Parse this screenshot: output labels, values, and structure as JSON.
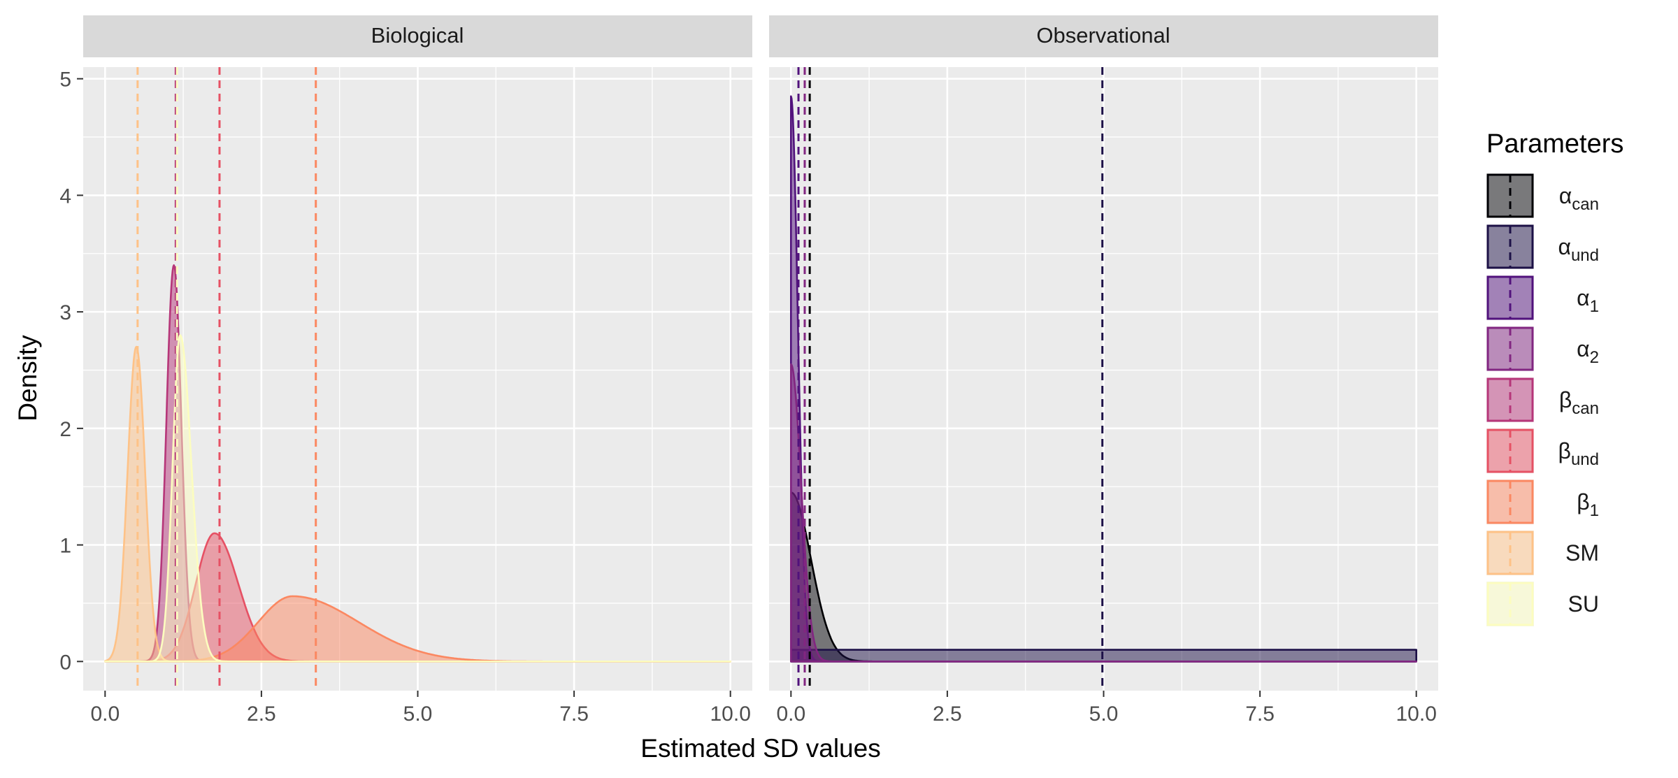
{
  "chart_data": {
    "type": "area",
    "subtype": "density",
    "facets": [
      "Biological",
      "Observational"
    ],
    "xlabel": "Estimated SD values",
    "ylabel": "Density",
    "xlim": [
      -0.35,
      10.35
    ],
    "ylim": [
      -0.25,
      5.1
    ],
    "x_ticks": [
      0,
      2.5,
      5,
      7.5,
      10
    ],
    "x_tick_labels": [
      "0.0",
      "2.5",
      "5.0",
      "7.5",
      "10.0"
    ],
    "y_ticks": [
      0,
      1,
      2,
      3,
      4,
      5
    ],
    "y_tick_labels": [
      "0",
      "1",
      "2",
      "3",
      "4",
      "5"
    ],
    "grid": true,
    "legend": {
      "title": "Parameters",
      "position": "right",
      "entries": [
        {
          "key": "a_can",
          "base": "α",
          "sub": "can",
          "fill": "#000004",
          "line": "#000004"
        },
        {
          "key": "a_und",
          "base": "α",
          "sub": "und",
          "fill": "#1D1147",
          "line": "#1D1147"
        },
        {
          "key": "a_1",
          "base": "α",
          "sub": "1",
          "fill": "#51127C",
          "line": "#51127C"
        },
        {
          "key": "a_2",
          "base": "α",
          "sub": "2",
          "fill": "#822681",
          "line": "#822681"
        },
        {
          "key": "b_can",
          "base": "β",
          "sub": "can",
          "fill": "#B63679",
          "line": "#B63679"
        },
        {
          "key": "b_und",
          "base": "β",
          "sub": "und",
          "fill": "#E65164",
          "line": "#E65164"
        },
        {
          "key": "b_1",
          "base": "β",
          "sub": "1",
          "fill": "#FB8861",
          "line": "#FB8861"
        },
        {
          "key": "SM",
          "base": "SM",
          "sub": "",
          "fill": "#FEC287",
          "line": "#FEC287"
        },
        {
          "key": "SU",
          "base": "SU",
          "sub": "",
          "fill": "#FCFDBF",
          "line": "#FCFDBF"
        }
      ]
    },
    "panels": [
      {
        "name": "Biological",
        "series": [
          {
            "key": "b_can",
            "type": "gaussian",
            "mean": 1.1,
            "sd": 0.12,
            "peak": 3.4,
            "vline": 1.13
          },
          {
            "key": "b_und",
            "type": "skewnormal",
            "mode": 1.75,
            "wl": 0.3,
            "wr": 0.38,
            "peak": 1.1,
            "vline": 1.83
          },
          {
            "key": "b_1",
            "type": "skewnormal",
            "mode": 3.0,
            "wl": 0.55,
            "wr": 1.05,
            "peak": 0.56,
            "vline": 3.37
          },
          {
            "key": "SM",
            "type": "gaussian",
            "mean": 0.5,
            "sd": 0.14,
            "peak": 2.7,
            "vline": 0.52
          },
          {
            "key": "SU",
            "type": "skewnormal",
            "mode": 1.2,
            "wl": 0.12,
            "wr": 0.18,
            "peak": 2.8,
            "vline": 1.15
          }
        ]
      },
      {
        "name": "Observational",
        "series": [
          {
            "key": "a_can",
            "type": "halfnormal",
            "sd": 0.32,
            "peak": 1.45,
            "vline": 0.3
          },
          {
            "key": "a_und",
            "type": "uniform",
            "level": 0.1,
            "from": 0,
            "to": 10,
            "vline": 4.98
          },
          {
            "key": "a_1",
            "type": "halfnormal",
            "sd": 0.11,
            "peak": 4.85,
            "vline": 0.12
          },
          {
            "key": "a_2",
            "type": "halfnormal",
            "sd": 0.16,
            "peak": 2.55,
            "vline": 0.22
          }
        ]
      }
    ]
  }
}
